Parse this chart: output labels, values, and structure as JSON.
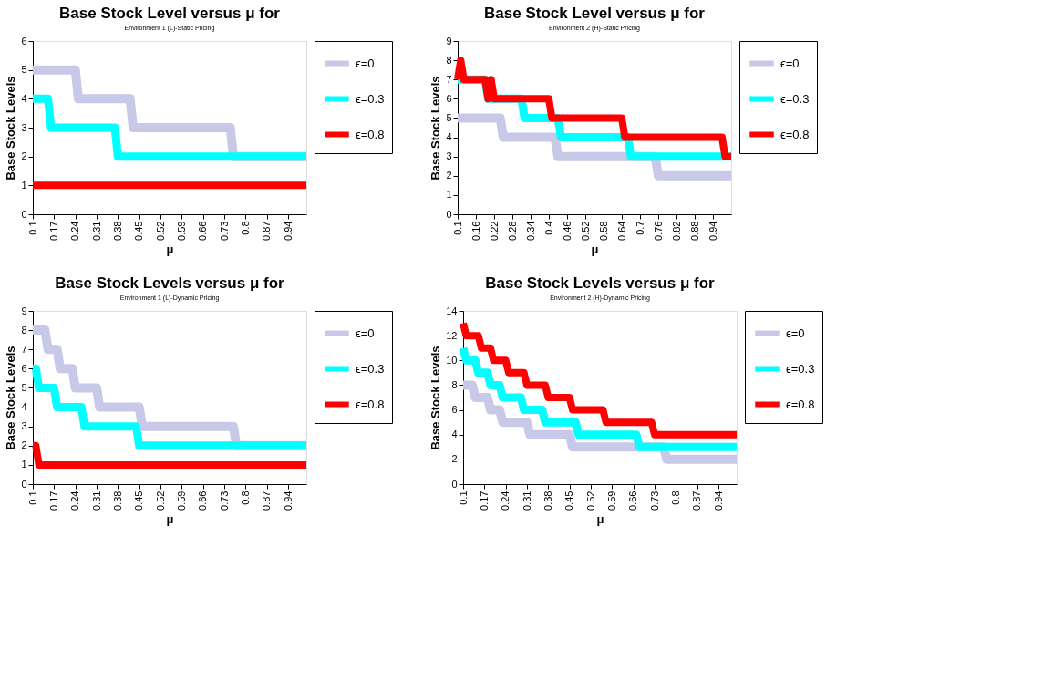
{
  "chart_data": [
    {
      "type": "line",
      "title": "Base Stock Level versus μ for",
      "subtitle": "Environment 1 (L)-Static Pricing",
      "xlabel": "μ",
      "ylabel": "Base Stock Levels",
      "xlim": [
        0.1,
        1.0
      ],
      "xticks": [
        0.1,
        0.17,
        0.24,
        0.31,
        0.38,
        0.45,
        0.52,
        0.59,
        0.66,
        0.73,
        0.8,
        0.87,
        0.94
      ],
      "ylim": [
        0,
        6
      ],
      "yticks": [
        0,
        1,
        2,
        3,
        4,
        5,
        6
      ],
      "grid": false,
      "legend": "right",
      "marker": "none",
      "line_style": "solid",
      "series": [
        {
          "name": "ϵ=0",
          "color": "#c8c8e8",
          "x": [
            0.1,
            0.24,
            0.25,
            0.42,
            0.43,
            0.75,
            0.76,
            1.0
          ],
          "values": [
            5,
            5,
            4,
            4,
            3,
            3,
            2,
            2
          ]
        },
        {
          "name": "ϵ=0.3",
          "color": "#00ffff",
          "x": [
            0.1,
            0.15,
            0.16,
            0.37,
            0.38,
            1.0
          ],
          "values": [
            4,
            4,
            3,
            3,
            2,
            2
          ]
        },
        {
          "name": "ϵ=0.8",
          "color": "#ff0000",
          "x": [
            0.1,
            1.0
          ],
          "values": [
            1,
            1
          ]
        }
      ]
    },
    {
      "type": "line",
      "title": "Base Stock Level versus μ for",
      "subtitle": "Environment 2 (H)-Static Pricing",
      "xlabel": "μ",
      "ylabel": "Base Stock Levels",
      "xlim": [
        0.1,
        1.0
      ],
      "xticks": [
        0.1,
        0.16,
        0.22,
        0.28,
        0.34,
        0.4,
        0.46,
        0.52,
        0.58,
        0.64,
        0.7,
        0.76,
        0.82,
        0.88,
        0.94
      ],
      "ylim": [
        0,
        9
      ],
      "yticks": [
        0,
        1,
        2,
        3,
        4,
        5,
        6,
        7,
        8,
        9
      ],
      "grid": false,
      "legend": "right",
      "marker": "none",
      "line_style": "solid",
      "series": [
        {
          "name": "ϵ=0",
          "color": "#c8c8e8",
          "x": [
            0.1,
            0.24,
            0.25,
            0.42,
            0.43,
            0.75,
            0.76,
            1.0
          ],
          "values": [
            5,
            5,
            4,
            4,
            3,
            3,
            2,
            2
          ]
        },
        {
          "name": "ϵ=0.3",
          "color": "#00ffff",
          "x": [
            0.1,
            0.19,
            0.2,
            0.31,
            0.32,
            0.43,
            0.44,
            0.66,
            0.67,
            1.0
          ],
          "values": [
            7,
            7,
            6,
            6,
            5,
            5,
            4,
            4,
            3,
            3
          ]
        },
        {
          "name": "ϵ=0.8",
          "color": "#ff0000",
          "x": [
            0.1,
            0.11,
            0.12,
            0.19,
            0.2,
            0.21,
            0.22,
            0.4,
            0.41,
            0.64,
            0.65,
            0.97,
            0.98,
            1.0
          ],
          "values": [
            7,
            8,
            7,
            7,
            6,
            7,
            6,
            6,
            5,
            5,
            4,
            4,
            3,
            3
          ]
        }
      ]
    },
    {
      "type": "line",
      "title": "Base Stock Levels versus μ for",
      "subtitle": "Environment 1 (L)-Dynamic Pricing",
      "xlabel": "μ",
      "ylabel": "Base Stock Levels",
      "xlim": [
        0.1,
        1.0
      ],
      "xticks": [
        0.1,
        0.17,
        0.24,
        0.31,
        0.38,
        0.45,
        0.52,
        0.59,
        0.66,
        0.73,
        0.8,
        0.87,
        0.94
      ],
      "ylim": [
        0,
        9
      ],
      "yticks": [
        0,
        1,
        2,
        3,
        4,
        5,
        6,
        7,
        8,
        9
      ],
      "grid": false,
      "legend": "right",
      "marker": "none",
      "line_style": "solid",
      "series": [
        {
          "name": "ϵ=0",
          "color": "#c8c8e8",
          "x": [
            0.1,
            0.14,
            0.15,
            0.18,
            0.19,
            0.23,
            0.24,
            0.31,
            0.32,
            0.45,
            0.46,
            0.76,
            0.77,
            1.0
          ],
          "values": [
            8,
            8,
            7,
            7,
            6,
            6,
            5,
            5,
            4,
            4,
            3,
            3,
            2,
            2
          ]
        },
        {
          "name": "ϵ=0.3",
          "color": "#00ffff",
          "x": [
            0.1,
            0.11,
            0.12,
            0.17,
            0.18,
            0.26,
            0.27,
            0.44,
            0.45,
            1.0
          ],
          "values": [
            6,
            6,
            5,
            5,
            4,
            4,
            3,
            3,
            2,
            2
          ]
        },
        {
          "name": "ϵ=0.8",
          "color": "#ff0000",
          "x": [
            0.1,
            0.11,
            0.12,
            1.0
          ],
          "values": [
            2,
            2,
            1,
            1
          ]
        }
      ]
    },
    {
      "type": "line",
      "title": "Base Stock Levels versus μ for",
      "subtitle": "Environment 2 (H)-Dynamic Pricing",
      "xlabel": "μ",
      "ylabel": "Base Stock Levels",
      "xlim": [
        0.1,
        1.0
      ],
      "xticks": [
        0.1,
        0.17,
        0.24,
        0.31,
        0.38,
        0.45,
        0.52,
        0.59,
        0.66,
        0.73,
        0.8,
        0.87,
        0.94
      ],
      "ylim": [
        0,
        14
      ],
      "yticks": [
        0,
        2,
        4,
        6,
        8,
        10,
        12,
        14
      ],
      "grid": false,
      "legend": "right",
      "marker": "none",
      "line_style": "solid",
      "series": [
        {
          "name": "ϵ=0",
          "color": "#c8c8e8",
          "x": [
            0.1,
            0.13,
            0.14,
            0.18,
            0.19,
            0.22,
            0.23,
            0.31,
            0.32,
            0.45,
            0.46,
            0.76,
            0.77,
            1.0
          ],
          "values": [
            8,
            8,
            7,
            7,
            6,
            6,
            5,
            5,
            4,
            4,
            3,
            3,
            2,
            2
          ]
        },
        {
          "name": "ϵ=0.3",
          "color": "#00ffff",
          "x": [
            0.1,
            0.11,
            0.14,
            0.15,
            0.18,
            0.19,
            0.22,
            0.23,
            0.29,
            0.3,
            0.36,
            0.37,
            0.47,
            0.48,
            0.67,
            0.68,
            1.0
          ],
          "values": [
            11,
            10,
            10,
            9,
            9,
            8,
            8,
            7,
            7,
            6,
            6,
            5,
            5,
            4,
            4,
            3,
            3
          ]
        },
        {
          "name": "ϵ=0.8",
          "color": "#ff0000",
          "x": [
            0.1,
            0.11,
            0.15,
            0.16,
            0.19,
            0.2,
            0.24,
            0.25,
            0.3,
            0.31,
            0.37,
            0.38,
            0.45,
            0.46,
            0.56,
            0.57,
            0.72,
            0.73,
            1.0
          ],
          "values": [
            13,
            12,
            12,
            11,
            11,
            10,
            10,
            9,
            9,
            8,
            8,
            7,
            7,
            6,
            6,
            5,
            5,
            4,
            4
          ]
        }
      ]
    }
  ]
}
